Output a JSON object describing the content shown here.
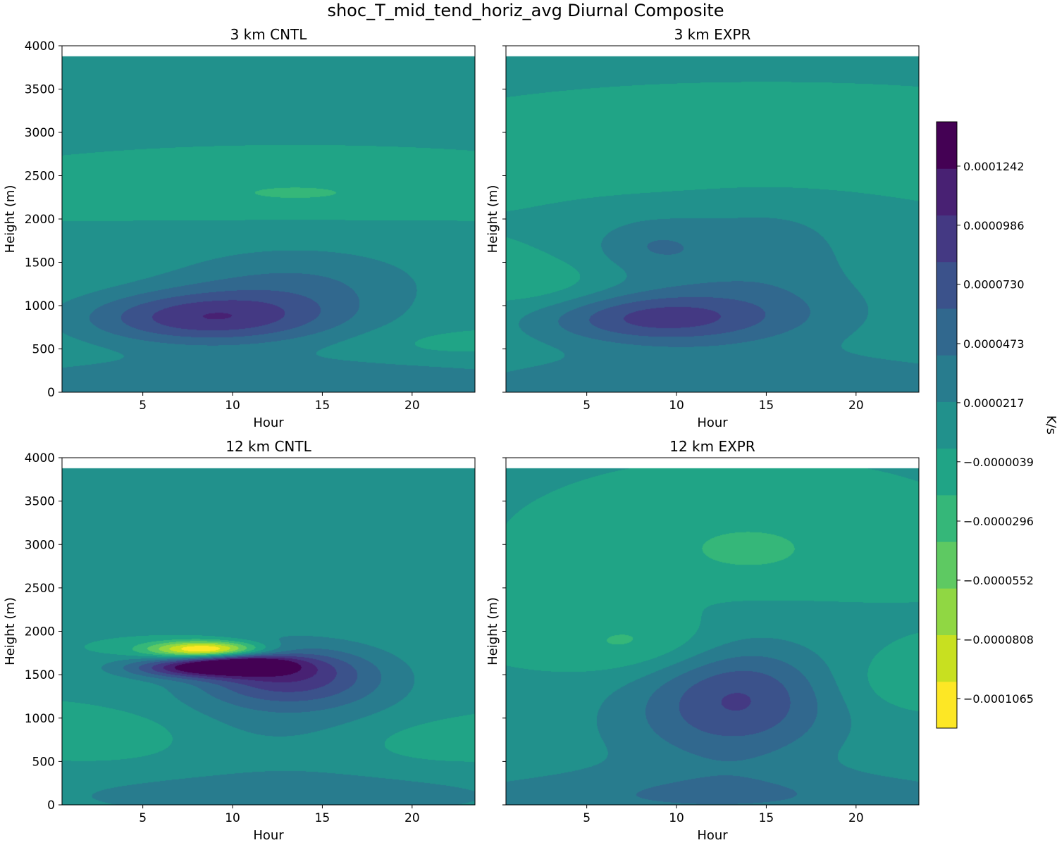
{
  "figure": {
    "suptitle": "shoc_T_mid_tend_horiz_avg Diurnal Composite"
  },
  "colors": {
    "fill_background": "#22968b",
    "colormap": [
      "#fde725",
      "#c8e020",
      "#90d743",
      "#5ec962",
      "#35b779",
      "#20a486",
      "#21918c",
      "#287c8e",
      "#31688e",
      "#3b528b",
      "#443983",
      "#482173",
      "#440154"
    ]
  },
  "chart_data": [
    {
      "type": "contour",
      "title": "3 km CNTL",
      "xlabel": "Hour",
      "ylabel": "Height (m)",
      "xlim": [
        0.5,
        23.5
      ],
      "ylim": [
        0,
        4000
      ],
      "xticks": [
        5,
        10,
        15,
        20
      ],
      "yticks": [
        0,
        500,
        1000,
        1500,
        2000,
        2500,
        3000,
        3500,
        4000
      ],
      "data_top": 3880,
      "features": [
        {
          "x": 8.5,
          "y": 850,
          "sx": 5.0,
          "sy": 220,
          "amp": 8.8e-05
        },
        {
          "x": 13.5,
          "y": 1250,
          "sx": 5.5,
          "sy": 330,
          "amp": 4e-05
        },
        {
          "x": 12,
          "y": 100,
          "sx": 14,
          "sy": 220,
          "amp": 3.8e-05
        },
        {
          "x": 13.5,
          "y": 2300,
          "sx": 6.0,
          "sy": 160,
          "amp": -2.2e-05
        },
        {
          "x": 22,
          "y": 550,
          "sx": 3,
          "sy": 120,
          "amp": -1e-05
        }
      ]
    },
    {
      "type": "contour",
      "title": "3 km EXPR",
      "xlabel": "Hour",
      "ylabel": "Height (m)",
      "xlim": [
        0.5,
        23.5
      ],
      "ylim": [
        0,
        4000
      ],
      "xticks": [
        5,
        10,
        15,
        20
      ],
      "yticks": [
        0,
        500,
        1000,
        1500,
        2000,
        2500,
        3000,
        3500,
        4000
      ],
      "data_top": 3880,
      "features": [
        {
          "x": 8.5,
          "y": 850,
          "sx": 4.5,
          "sy": 200,
          "amp": 6e-05
        },
        {
          "x": 12.5,
          "y": 900,
          "sx": 6.5,
          "sy": 330,
          "amp": 3.5e-05
        },
        {
          "x": 8.5,
          "y": 1700,
          "sx": 2.5,
          "sy": 230,
          "amp": 3.2e-05
        },
        {
          "x": 15,
          "y": 1650,
          "sx": 4.0,
          "sy": 450,
          "amp": 2.8e-05
        },
        {
          "x": 14,
          "y": 100,
          "sx": 14,
          "sy": 250,
          "amp": 3.5e-05
        },
        {
          "x": 15,
          "y": 2700,
          "sx": 7.0,
          "sy": 260,
          "amp": -1.8e-05
        },
        {
          "x": 2.5,
          "y": 1200,
          "sx": 3.0,
          "sy": 220,
          "amp": -2e-05
        }
      ]
    },
    {
      "type": "contour",
      "title": "12 km CNTL",
      "xlabel": "Hour",
      "ylabel": "Height (m)",
      "xlim": [
        0.5,
        23.5
      ],
      "ylim": [
        0,
        4000
      ],
      "xticks": [
        5,
        10,
        15,
        20
      ],
      "yticks": [
        0,
        500,
        1000,
        1500,
        2000,
        2500,
        3000,
        3500,
        4000
      ],
      "data_top": 3880,
      "features": [
        {
          "x": 8.5,
          "y": 1790,
          "sx": 2.2,
          "sy": 70,
          "amp": -0.000145
        },
        {
          "x": 8.5,
          "y": 1580,
          "sx": 3.0,
          "sy": 80,
          "amp": 0.00011
        },
        {
          "x": 10.5,
          "y": 1650,
          "sx": 2.0,
          "sy": 60,
          "amp": 6e-05
        },
        {
          "x": 13,
          "y": 1500,
          "sx": 3.5,
          "sy": 230,
          "amp": 7.5e-05
        },
        {
          "x": 13.5,
          "y": 1200,
          "sx": 5.0,
          "sy": 500,
          "amp": 3e-05
        },
        {
          "x": 13,
          "y": 100,
          "sx": 12,
          "sy": 220,
          "amp": 3e-05
        },
        {
          "x": 3,
          "y": 800,
          "sx": 3.0,
          "sy": 180,
          "amp": -1.8e-05
        },
        {
          "x": 21,
          "y": 750,
          "sx": 4.0,
          "sy": 200,
          "amp": -1.5e-05
        }
      ]
    },
    {
      "type": "contour",
      "title": "12 km EXPR",
      "xlabel": "Hour",
      "ylabel": "Height (m)",
      "xlim": [
        0.5,
        23.5
      ],
      "ylim": [
        0,
        4000
      ],
      "xticks": [
        5,
        10,
        15,
        20
      ],
      "yticks": [
        0,
        500,
        1000,
        1500,
        2000,
        2500,
        3000,
        3500,
        4000
      ],
      "data_top": 3880,
      "features": [
        {
          "x": 13.5,
          "y": 1300,
          "sx": 3.5,
          "sy": 450,
          "amp": 6e-05
        },
        {
          "x": 12,
          "y": 900,
          "sx": 6.0,
          "sy": 500,
          "amp": 3e-05
        },
        {
          "x": 12,
          "y": 80,
          "sx": 14,
          "sy": 230,
          "amp": 3.5e-05
        },
        {
          "x": 8,
          "y": 1850,
          "sx": 3.5,
          "sy": 250,
          "amp": -3e-05
        },
        {
          "x": 14,
          "y": 2950,
          "sx": 4.0,
          "sy": 300,
          "amp": -2.5e-05
        },
        {
          "x": 22,
          "y": 1400,
          "sx": 2.5,
          "sy": 250,
          "amp": -1.5e-05
        }
      ]
    }
  ],
  "colorbar": {
    "label": "K/s",
    "vmin": -0.0001193,
    "vmax": 0.0001434,
    "levels_count": 14,
    "tick_values": [
      -0.0001065,
      -8.08e-05,
      -5.52e-05,
      -2.96e-05,
      -3.9e-06,
      2.17e-05,
      4.73e-05,
      7.3e-05,
      9.86e-05,
      0.0001242
    ],
    "tick_labels": [
      "−0.0001065",
      "−0.0000808",
      "−0.0000552",
      "−0.0000296",
      "−0.0000039",
      "0.0000217",
      "0.0000473",
      "0.0000730",
      "0.0000986",
      "0.0001242"
    ]
  }
}
